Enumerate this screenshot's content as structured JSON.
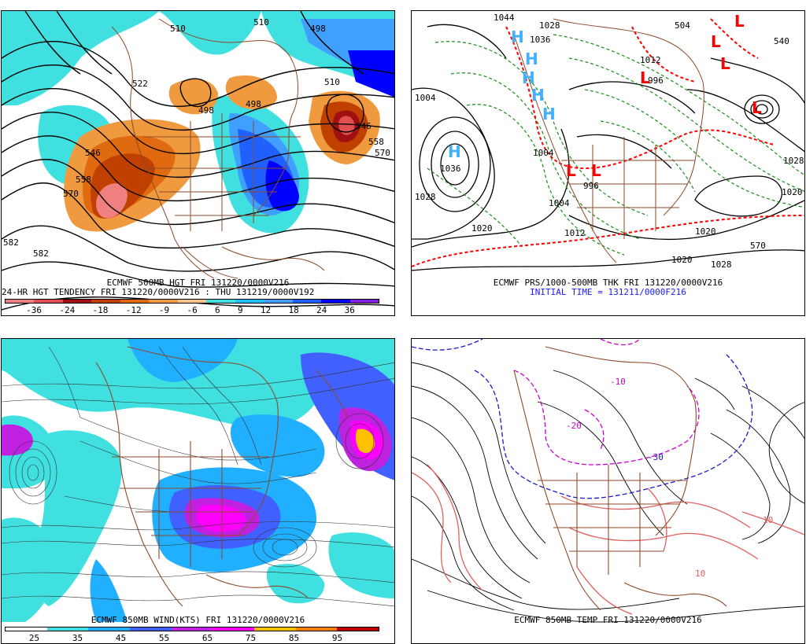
{
  "panels": {
    "top_left": {
      "caption_line1": "ECMWF 500MB HGT FRI 131220/0000V216",
      "caption_line2": "24-HR HGT TENDENCY FRI 131220/0000V216 : THU 131219/0000V192",
      "legend_values": [
        "-36",
        "-24",
        "-18",
        "-12",
        "-9",
        "-6",
        "6",
        "9",
        "12",
        "18",
        "24",
        "36"
      ],
      "legend_colors": [
        "#f08080",
        "#e05050",
        "#a01010",
        "#c04000",
        "#e06a10",
        "#f09a40",
        "#f6c48a",
        "#40e0e0",
        "#20c0ff",
        "#40a0ff",
        "#2060ff",
        "#0000ff",
        "#8020e0"
      ],
      "contour_labels": [
        "510",
        "510",
        "498",
        "522",
        "498",
        "498",
        "510",
        "546",
        "558",
        "570",
        "582",
        "582",
        "546",
        "558",
        "570"
      ]
    },
    "top_right": {
      "caption_line1": "ECMWF PRS/1000-500MB THK FRI 131220/0000V216",
      "caption_line2": "INITIAL TIME = 131211/0000F216",
      "high_symbol": "H",
      "low_symbol": "L",
      "pressure_labels": [
        "1044",
        "1028",
        "1036",
        "1036",
        "1028",
        "1020",
        "1004",
        "996",
        "1004",
        "1012",
        "1020",
        "1020",
        "1004",
        "1012",
        "996",
        "504",
        "540",
        "570",
        "1028",
        "1028",
        "1020"
      ]
    },
    "bottom_left": {
      "caption_line1": "ECMWF 850MB WIND(KTS) FRI 131220/0000V216",
      "legend_values": [
        "25",
        "35",
        "45",
        "55",
        "65",
        "75",
        "85",
        "95"
      ],
      "legend_colors": [
        "#ffffff",
        "#40e0e0",
        "#20b0ff",
        "#4060ff",
        "#c020e0",
        "#ff00ff",
        "#ffc000",
        "#ff8000",
        "#c00000"
      ]
    },
    "bottom_right": {
      "caption_line1": "ECMWF 850MB TEMP FRI 131220/0000V216",
      "contour_labels": [
        "-20",
        "-10",
        "-30",
        "10",
        "10"
      ]
    }
  },
  "colors": {
    "coastline": "#8b4a2b",
    "contour": "#000000",
    "thickness": "#1a8c1a",
    "thickness_warm": "#ff0000",
    "high": "#40b0ff",
    "low": "#ff0000",
    "temp_cold": "#1a1acc",
    "temp_freezing": "#cc00cc",
    "temp_warm": "#e06060"
  }
}
